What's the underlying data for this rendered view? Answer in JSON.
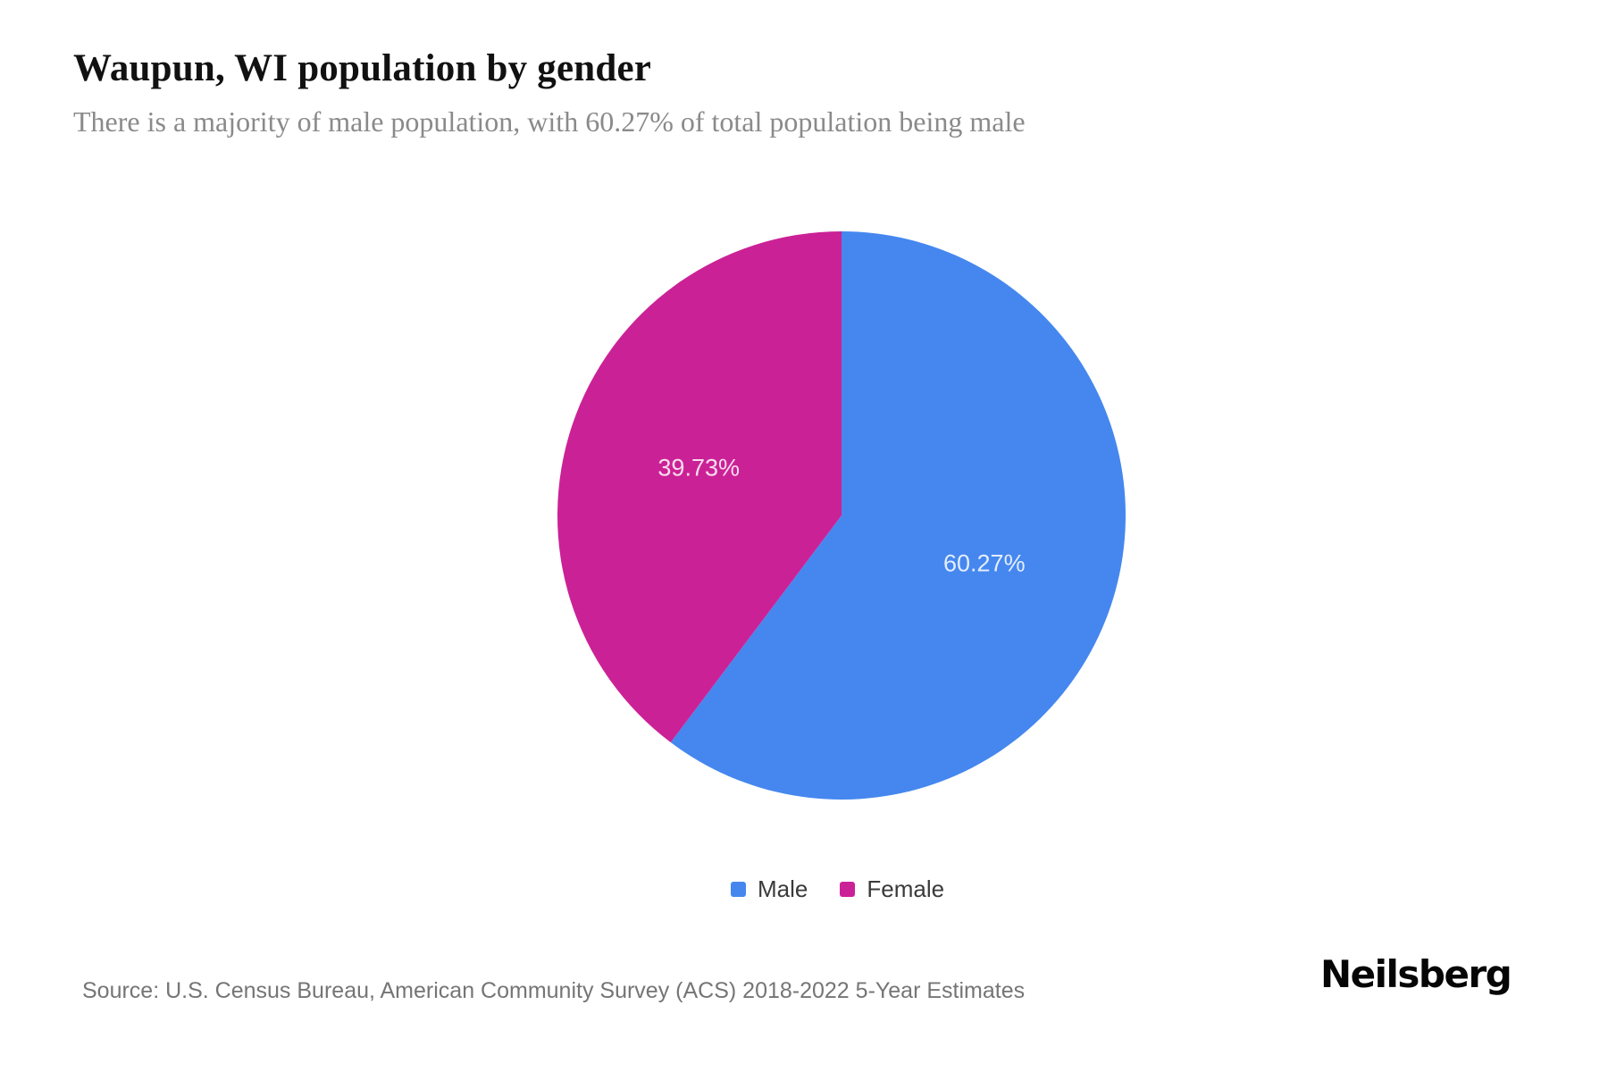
{
  "header": {
    "title": "Waupun, WI population by gender",
    "subtitle": "There is a majority of male population, with 60.27% of total population being male"
  },
  "chart_data": {
    "type": "pie",
    "title": "Waupun, WI population by gender",
    "series": [
      {
        "name": "Male",
        "value": 60.27,
        "label": "60.27%",
        "color": "#4587EF"
      },
      {
        "name": "Female",
        "value": 39.73,
        "label": "39.73%",
        "color": "#CB2196"
      }
    ],
    "start_angle_deg": 0,
    "direction": "clockwise",
    "legend_position": "bottom",
    "slice_label_color": "rgba(255,255,255,0.85)"
  },
  "footer": {
    "source": "Source: U.S. Census Bureau, American Community Survey (ACS) 2018-2022 5-Year Estimates",
    "brand": "Neilsberg"
  }
}
